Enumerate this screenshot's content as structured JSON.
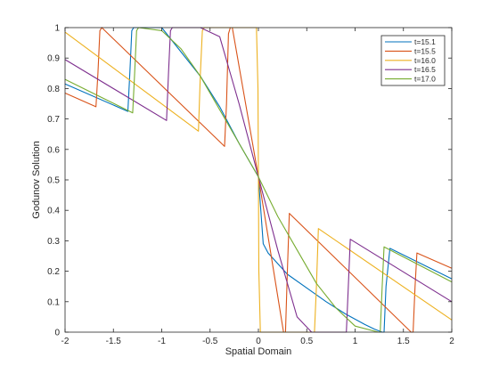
{
  "chart_data": {
    "type": "line",
    "title": "",
    "xlabel": "Spatial Domain",
    "ylabel": "Godunov Solution",
    "xlim": [
      -2,
      2
    ],
    "ylim": [
      0,
      1
    ],
    "xticks": [
      -2,
      -1.5,
      -1,
      -0.5,
      0,
      0.5,
      1,
      1.5,
      2
    ],
    "yticks": [
      0,
      0.1,
      0.2,
      0.3,
      0.4,
      0.5,
      0.6,
      0.7,
      0.8,
      0.9,
      1
    ],
    "xtick_labels": [
      "-2",
      "-1.5",
      "-1",
      "-0.5",
      "0",
      "0.5",
      "1",
      "1.5",
      "2"
    ],
    "ytick_labels": [
      "0",
      "0.1",
      "0.2",
      "0.3",
      "0.4",
      "0.5",
      "0.6",
      "0.7",
      "0.8",
      "0.9",
      "1"
    ],
    "grid": false,
    "legend_position": "top-right",
    "series": [
      {
        "name": "t=15.1",
        "color": "#0072BD",
        "x": [
          -2.0,
          -1.35,
          -1.33,
          -1.31,
          -1.29,
          -1.0,
          -0.8,
          -0.6,
          -0.4,
          -0.2,
          0.0,
          0.05,
          0.1,
          0.3,
          0.5,
          0.7,
          0.9,
          1.1,
          1.2,
          1.28,
          1.3,
          1.32,
          1.36,
          2.0
        ],
        "y": [
          0.815,
          0.725,
          0.85,
          0.99,
          1.0,
          1.0,
          0.92,
          0.84,
          0.74,
          0.62,
          0.51,
          0.29,
          0.26,
          0.19,
          0.145,
          0.1,
          0.06,
          0.025,
          0.01,
          0.0,
          0.0,
          0.15,
          0.275,
          0.175
        ]
      },
      {
        "name": "t=15.5",
        "color": "#D95319",
        "x": [
          -2.0,
          -1.68,
          -1.66,
          -1.64,
          -1.62,
          -0.35,
          -0.33,
          -0.31,
          -0.29,
          -0.27,
          0.0,
          0.26,
          0.28,
          0.3,
          0.32,
          1.58,
          1.6,
          1.62,
          1.64,
          2.0
        ],
        "y": [
          0.785,
          0.74,
          0.85,
          0.99,
          1.0,
          0.61,
          0.75,
          0.98,
          1.0,
          1.0,
          0.51,
          0.0,
          0.0,
          0.2,
          0.39,
          0.0,
          0.0,
          0.15,
          0.26,
          0.21
        ]
      },
      {
        "name": "t=16.0",
        "color": "#EDB120",
        "x": [
          -2.0,
          -0.62,
          -0.6,
          -0.58,
          -0.56,
          -0.02,
          -0.005,
          0.0,
          0.005,
          0.02,
          0.56,
          0.58,
          0.6,
          0.62,
          2.0
        ],
        "y": [
          0.985,
          0.66,
          0.85,
          0.99,
          1.0,
          1.0,
          0.8,
          0.51,
          0.2,
          0.0,
          0.0,
          0.0,
          0.15,
          0.34,
          0.04
        ]
      },
      {
        "name": "t=16.5",
        "color": "#7E2F8E",
        "x": [
          -2.0,
          -0.95,
          -0.93,
          -0.91,
          -0.89,
          -0.6,
          -0.4,
          -0.2,
          0.0,
          0.2,
          0.4,
          0.55,
          0.6,
          0.89,
          0.91,
          0.93,
          0.95,
          2.0
        ],
        "y": [
          0.895,
          0.695,
          0.85,
          0.99,
          1.0,
          1.0,
          0.97,
          0.75,
          0.51,
          0.27,
          0.05,
          0.0,
          0.0,
          0.0,
          0.0,
          0.15,
          0.305,
          0.1
        ]
      },
      {
        "name": "t=17.0",
        "color": "#77AC30",
        "x": [
          -2.0,
          -1.3,
          -1.28,
          -1.26,
          -1.24,
          -1.0,
          -0.8,
          -0.6,
          -0.4,
          -0.2,
          0.0,
          0.2,
          0.4,
          0.6,
          0.8,
          1.0,
          1.24,
          1.26,
          1.28,
          1.3,
          2.0
        ],
        "y": [
          0.83,
          0.72,
          0.85,
          0.99,
          1.0,
          0.99,
          0.93,
          0.84,
          0.73,
          0.62,
          0.51,
          0.38,
          0.27,
          0.16,
          0.08,
          0.02,
          0.0,
          0.0,
          0.15,
          0.28,
          0.165
        ]
      }
    ]
  }
}
